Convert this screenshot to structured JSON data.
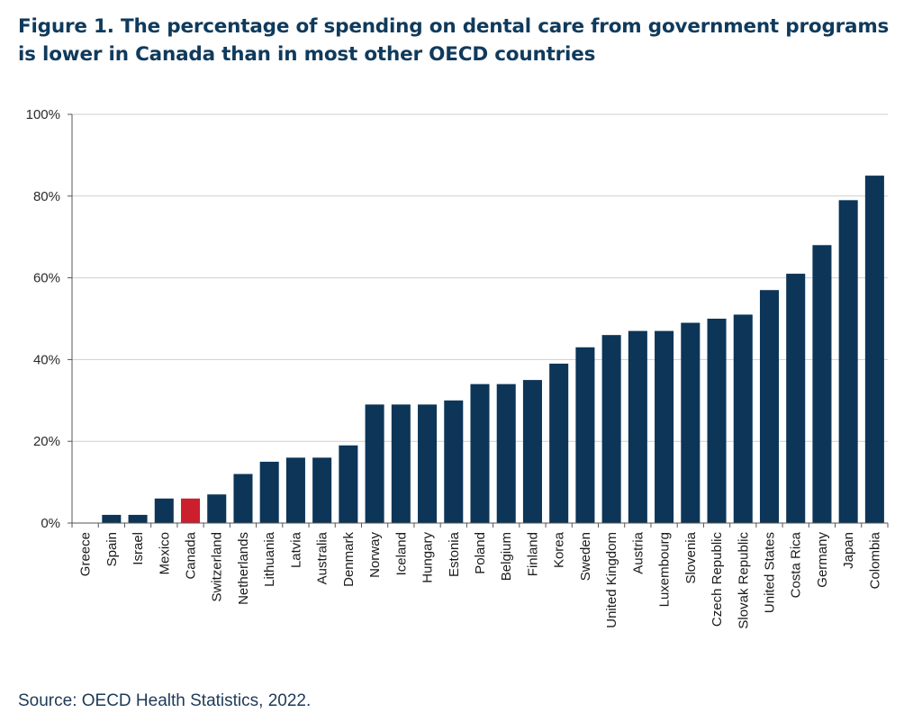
{
  "title": "Figure 1. The percentage of spending on dental care from government programs is lower in Canada than in most other OECD countries",
  "source": "Source: OECD Health Statistics, 2022.",
  "colors": {
    "default_bar": "#0c3558",
    "highlight_bar": "#cc1f2e",
    "grid": "#cfcfcf",
    "axis": "#555555",
    "title": "#0f3a5c"
  },
  "chart_data": {
    "type": "bar",
    "title": "Figure 1. The percentage of spending on dental care from government programs is lower in Canada than in most other OECD countries",
    "xlabel": "",
    "ylabel": "",
    "ylim": [
      0,
      100
    ],
    "y_ticks": [
      "0%",
      "20%",
      "40%",
      "60%",
      "80%",
      "100%"
    ],
    "y_tick_values": [
      0,
      20,
      40,
      60,
      80,
      100
    ],
    "grid": true,
    "highlight": "Canada",
    "categories": [
      "Greece",
      "Spain",
      "Israel",
      "Mexico",
      "Canada",
      "Switzerland",
      "Netherlands",
      "Lithuania",
      "Latvia",
      "Australia",
      "Denmark",
      "Norway",
      "Iceland",
      "Hungary",
      "Estonia",
      "Poland",
      "Belgium",
      "Finland",
      "Korea",
      "Sweden",
      "United Kingdom",
      "Austria",
      "Luxembourg",
      "Slovenia",
      "Czech Republic",
      "Slovak Republic",
      "United States",
      "Costa Rica",
      "Germany",
      "Japan",
      "Colombia"
    ],
    "values": [
      0,
      2,
      2,
      6,
      6,
      7,
      12,
      15,
      16,
      16,
      19,
      29,
      29,
      29,
      30,
      34,
      34,
      35,
      39,
      43,
      46,
      47,
      47,
      49,
      50,
      51,
      57,
      61,
      68,
      79,
      85
    ]
  }
}
